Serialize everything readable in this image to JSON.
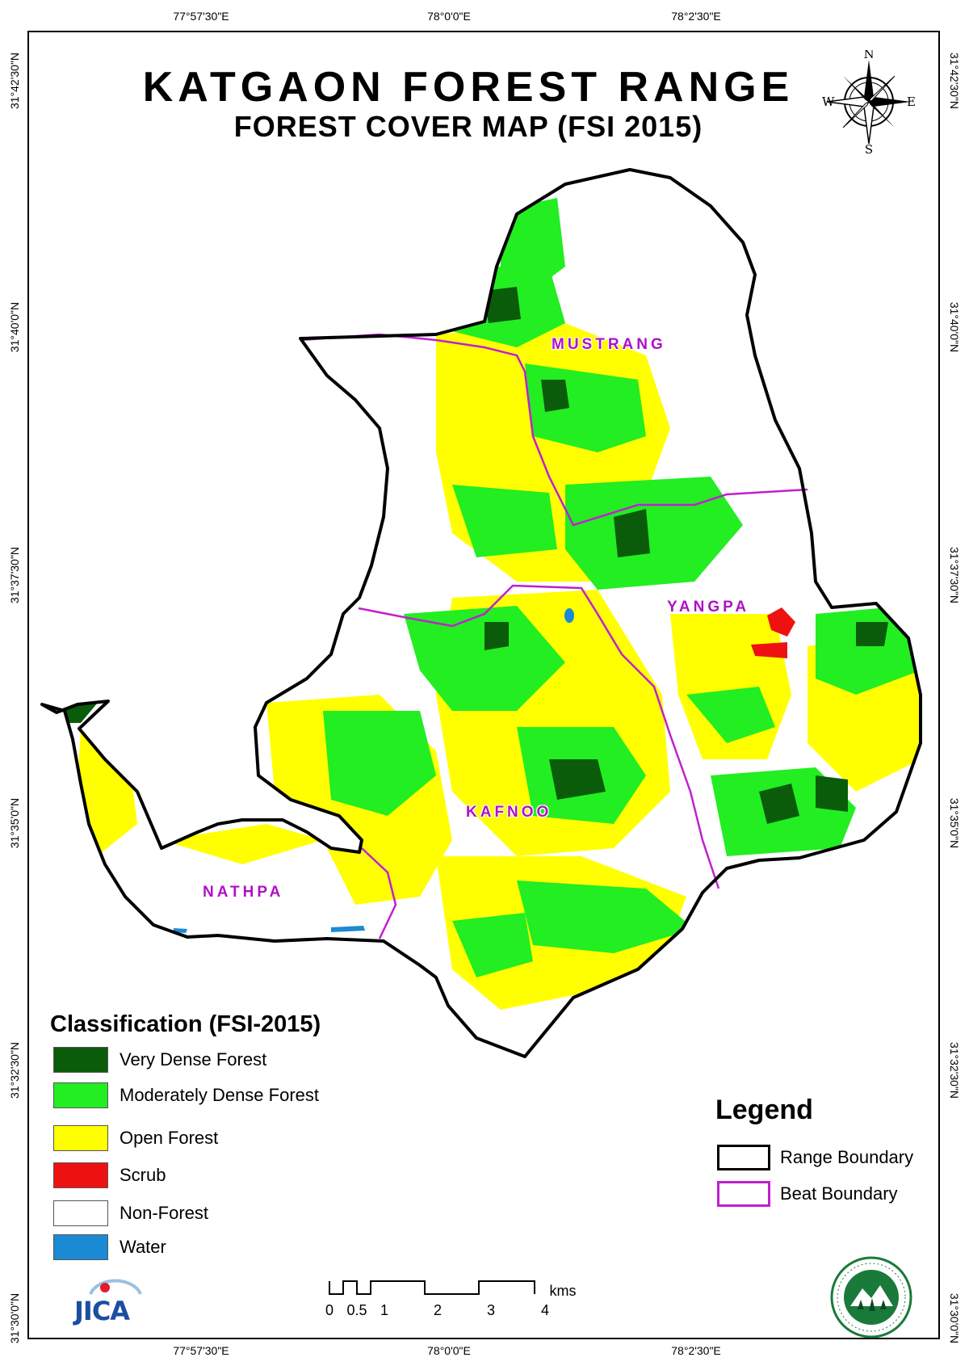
{
  "title": "KATGAON FOREST RANGE",
  "subtitle": "FOREST COVER MAP (FSI 2015)",
  "graticule": {
    "longitudes": [
      "77°57'30\"E",
      "78°0'0\"E",
      "78°2'30\"E"
    ],
    "latitudes": [
      "31°42'30\"N",
      "31°40'0\"N",
      "31°37'30\"N",
      "31°35'0\"N",
      "31°32'30\"N",
      "31°30'0\"N"
    ]
  },
  "compass": {
    "n": "N",
    "s": "S",
    "e": "E",
    "w": "W",
    "icon": "compass-rose-icon"
  },
  "beats": [
    "MUSTRANG",
    "YANGPA",
    "KAFNOO",
    "NATHPA"
  ],
  "classification": {
    "title": "Classification (FSI-2015)",
    "items": [
      {
        "label": "Very Dense Forest",
        "color": "#0a5c0a"
      },
      {
        "label": "Moderately Dense Forest",
        "color": "#22ee22"
      },
      {
        "label": "Open Forest",
        "color": "#ffff00"
      },
      {
        "label": "Scrub",
        "color": "#ee1111"
      },
      {
        "label": "Non-Forest",
        "color": "#ffffff"
      },
      {
        "label": "Water",
        "color": "#1a8ad4"
      }
    ]
  },
  "legend": {
    "title": "Legend",
    "items": [
      {
        "label": "Range Boundary",
        "color": "#000000"
      },
      {
        "label": "Beat Boundary",
        "color": "#c020d0"
      }
    ]
  },
  "scale_bar": {
    "labels": [
      "0",
      "0.5",
      "1",
      "2",
      "3",
      "4"
    ],
    "unit": "kms"
  },
  "logos": {
    "left": "JICA",
    "right": "forest-department-emblem-icon"
  }
}
